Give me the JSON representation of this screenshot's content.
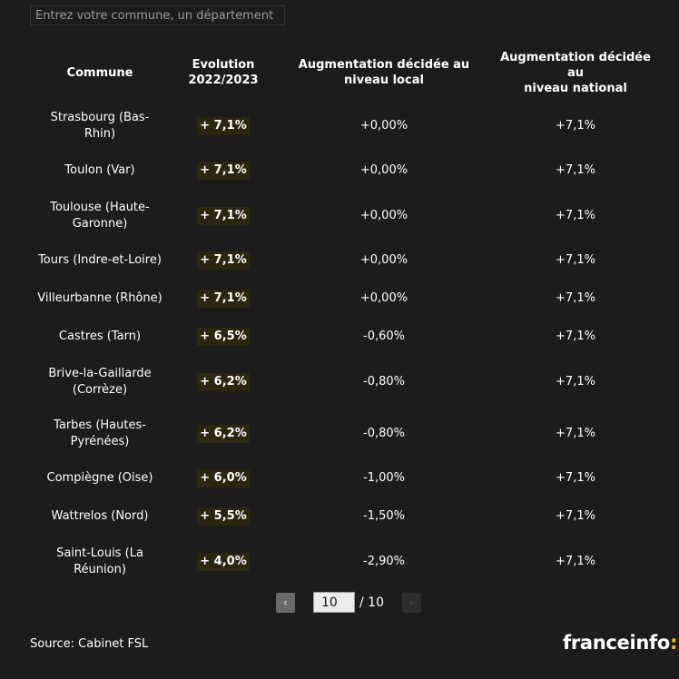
{
  "search": {
    "placeholder": "Entrez votre commune, un département"
  },
  "table": {
    "headers": [
      "Commune",
      "Evolution\n2022/2023",
      "Augmentation décidée au\nniveau local",
      "Augmentation décidée au\nniveau national"
    ],
    "rows": [
      {
        "commune": "Strasbourg (Bas-Rhin)",
        "evolution": "+ 7,1%",
        "local": "+0,00%",
        "national": "+7,1%"
      },
      {
        "commune": "Toulon (Var)",
        "evolution": "+ 7,1%",
        "local": "+0,00%",
        "national": "+7,1%"
      },
      {
        "commune": "Toulouse (Haute-Garonne)",
        "evolution": "+ 7,1%",
        "local": "+0,00%",
        "national": "+7,1%"
      },
      {
        "commune": "Tours (Indre-et-Loire)",
        "evolution": "+ 7,1%",
        "local": "+0,00%",
        "national": "+7,1%"
      },
      {
        "commune": "Villeurbanne (Rhône)",
        "evolution": "+ 7,1%",
        "local": "+0,00%",
        "national": "+7,1%"
      },
      {
        "commune": "Castres (Tarn)",
        "evolution": "+ 6,5%",
        "local": "-0,60%",
        "national": "+7,1%"
      },
      {
        "commune": "Brive-la-Gaillarde (Corrèze)",
        "evolution": "+ 6,2%",
        "local": "-0,80%",
        "national": "+7,1%"
      },
      {
        "commune": "Tarbes (Hautes-Pyrénées)",
        "evolution": "+ 6,2%",
        "local": "-0,80%",
        "national": "+7,1%"
      },
      {
        "commune": "Compiègne (Oise)",
        "evolution": "+ 6,0%",
        "local": "-1,00%",
        "national": "+7,1%"
      },
      {
        "commune": "Wattrelos (Nord)",
        "evolution": "+ 5,5%",
        "local": "-1,50%",
        "national": "+7,1%"
      },
      {
        "commune": "Saint-Louis (La Réunion)",
        "evolution": "+ 4,0%",
        "local": "-2,90%",
        "national": "+7,1%"
      }
    ]
  },
  "pagination": {
    "prev_icon": "chevron-left-icon",
    "prev_glyph": "‹",
    "current": "10",
    "total": "/ 10",
    "next_icon": "chevron-right-icon",
    "next_glyph": "›"
  },
  "footer": {
    "source": "Source: Cabinet FSL",
    "logo_text": "franceinfo",
    "logo_colon": ":"
  },
  "colors": {
    "background": "#1c1c1c",
    "badge_bg": "#2a2610",
    "logo_accent": "#f5c400"
  }
}
